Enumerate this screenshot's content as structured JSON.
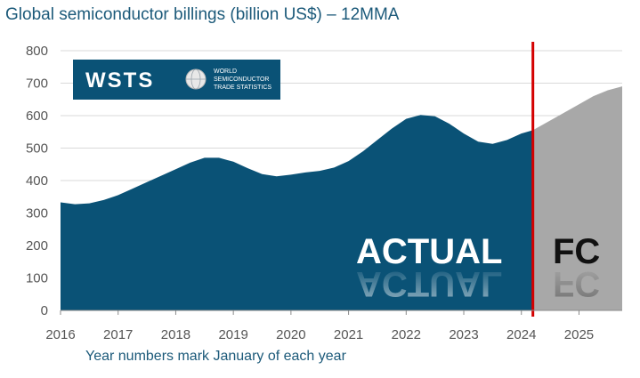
{
  "title": "Global semiconductor billings (billion US$) – 12MMA",
  "footnote": "Year numbers mark January of each year",
  "logo": {
    "mark": "WSTS",
    "line1": "WORLD",
    "line2": "SEMICONDUCTOR",
    "line3": "TRADE STATISTICS",
    "bg_color": "#0a5276"
  },
  "colors": {
    "actual": "#0a5276",
    "forecast": "#a8a8a8",
    "divider": "#d40000",
    "grid": "#d9d9d9"
  },
  "chart_data": {
    "type": "area",
    "title": "Global semiconductor billings (billion US$) – 12MMA",
    "xlabel": "Year numbers mark January of each year",
    "ylabel": "",
    "xlim": [
      2016,
      2025.75
    ],
    "ylim": [
      0,
      800
    ],
    "yticks": [
      0,
      100,
      200,
      300,
      400,
      500,
      600,
      700,
      800
    ],
    "xticks": [
      2016,
      2017,
      2018,
      2019,
      2020,
      2021,
      2022,
      2023,
      2024,
      2025
    ],
    "grid": true,
    "divider_x": 2024.2,
    "series": [
      {
        "name": "ACTUAL",
        "x": [
          2016,
          2016.25,
          2016.5,
          2016.75,
          2017,
          2017.25,
          2017.5,
          2017.75,
          2018,
          2018.25,
          2018.5,
          2018.75,
          2019,
          2019.25,
          2019.5,
          2019.75,
          2020,
          2020.25,
          2020.5,
          2020.75,
          2021,
          2021.25,
          2021.5,
          2021.75,
          2022,
          2022.25,
          2022.5,
          2022.75,
          2023,
          2023.25,
          2023.5,
          2023.75,
          2024,
          2024.2
        ],
        "values": [
          333,
          327,
          330,
          340,
          355,
          375,
          395,
          415,
          435,
          455,
          470,
          470,
          458,
          438,
          420,
          413,
          418,
          425,
          430,
          440,
          460,
          490,
          525,
          560,
          590,
          602,
          598,
          575,
          545,
          520,
          513,
          525,
          545,
          555
        ]
      },
      {
        "name": "FC",
        "x": [
          2024.2,
          2024.5,
          2024.75,
          2025,
          2025.25,
          2025.5,
          2025.75
        ],
        "values": [
          555,
          585,
          610,
          635,
          660,
          678,
          690
        ]
      }
    ],
    "annotations": [
      "ACTUAL",
      "FC"
    ]
  }
}
